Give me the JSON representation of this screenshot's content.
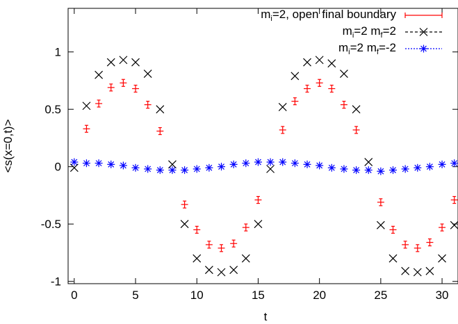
{
  "chart_data": {
    "type": "scatter",
    "title": "",
    "xlabel": "t",
    "ylabel": "<s(x=0,t)>",
    "xlim": [
      -0.5,
      31.3
    ],
    "ylim": [
      -1.02,
      1.38
    ],
    "xticks": [
      "0",
      "5",
      "10",
      "15",
      "20",
      "25",
      "30"
    ],
    "xtick_values": [
      0,
      5,
      10,
      15,
      20,
      25,
      30
    ],
    "yticks": [
      "-1",
      "-0.5",
      "0",
      "0.5",
      "1"
    ],
    "ytick_values": [
      -1,
      -0.5,
      0,
      0.5,
      1
    ],
    "grid": false,
    "legend_position": "top-right",
    "series": [
      {
        "name": "open final boundary",
        "legend": {
          "pre": "m",
          "sub": "i",
          "post": "=2, open final boundary"
        },
        "marker": "plus-errorbar",
        "color": "#ff0000",
        "x": [
          1,
          2,
          3,
          4,
          5,
          6,
          7,
          9,
          10,
          11,
          12,
          13,
          14,
          15,
          17,
          18,
          19,
          20,
          21,
          22,
          23,
          25,
          26,
          27,
          28,
          29,
          30,
          31
        ],
        "y": [
          0.33,
          0.55,
          0.69,
          0.73,
          0.68,
          0.54,
          0.31,
          -0.33,
          -0.55,
          -0.68,
          -0.71,
          -0.67,
          -0.53,
          -0.29,
          0.32,
          0.57,
          0.68,
          0.73,
          0.68,
          0.54,
          0.32,
          -0.31,
          -0.55,
          -0.68,
          -0.71,
          -0.66,
          -0.53,
          -0.29
        ]
      },
      {
        "name": "mi=2 mf=2",
        "legend": {
          "pre": "m",
          "sub": "i",
          "mid": "=2 m",
          "sub2": "f",
          "post": "=2"
        },
        "marker": "x",
        "color": "#000000",
        "x": [
          0,
          1,
          2,
          3,
          4,
          5,
          6,
          7,
          8,
          9,
          10,
          11,
          12,
          13,
          14,
          15,
          16,
          17,
          18,
          19,
          20,
          21,
          22,
          23,
          24,
          25,
          26,
          27,
          28,
          29,
          30,
          31
        ],
        "y": [
          -0.01,
          0.53,
          0.8,
          0.91,
          0.93,
          0.91,
          0.81,
          0.5,
          0.02,
          -0.5,
          -0.8,
          -0.9,
          -0.92,
          -0.9,
          -0.8,
          -0.5,
          -0.02,
          0.52,
          0.79,
          0.91,
          0.93,
          0.9,
          0.81,
          0.5,
          0.04,
          -0.51,
          -0.8,
          -0.91,
          -0.92,
          -0.91,
          -0.8,
          -0.51
        ]
      },
      {
        "name": "mi=2 mf=-2",
        "legend": {
          "pre": "m",
          "sub": "i",
          "mid": "=2 m",
          "sub2": "f",
          "post": "=-2"
        },
        "marker": "asterisk",
        "color": "#0000ff",
        "x": [
          0,
          1,
          2,
          3,
          4,
          5,
          6,
          7,
          8,
          9,
          10,
          11,
          12,
          13,
          14,
          15,
          16,
          17,
          18,
          19,
          20,
          21,
          22,
          23,
          24,
          25,
          26,
          27,
          28,
          29,
          30,
          31
        ],
        "y": [
          0.04,
          0.03,
          0.03,
          0.02,
          0.01,
          -0.01,
          -0.02,
          -0.03,
          -0.03,
          -0.03,
          -0.02,
          -0.01,
          0.0,
          0.02,
          0.03,
          0.04,
          0.04,
          0.04,
          0.03,
          0.02,
          0.01,
          -0.01,
          -0.02,
          -0.03,
          -0.03,
          -0.04,
          -0.03,
          -0.02,
          -0.01,
          0.0,
          0.02,
          0.03
        ]
      }
    ]
  }
}
